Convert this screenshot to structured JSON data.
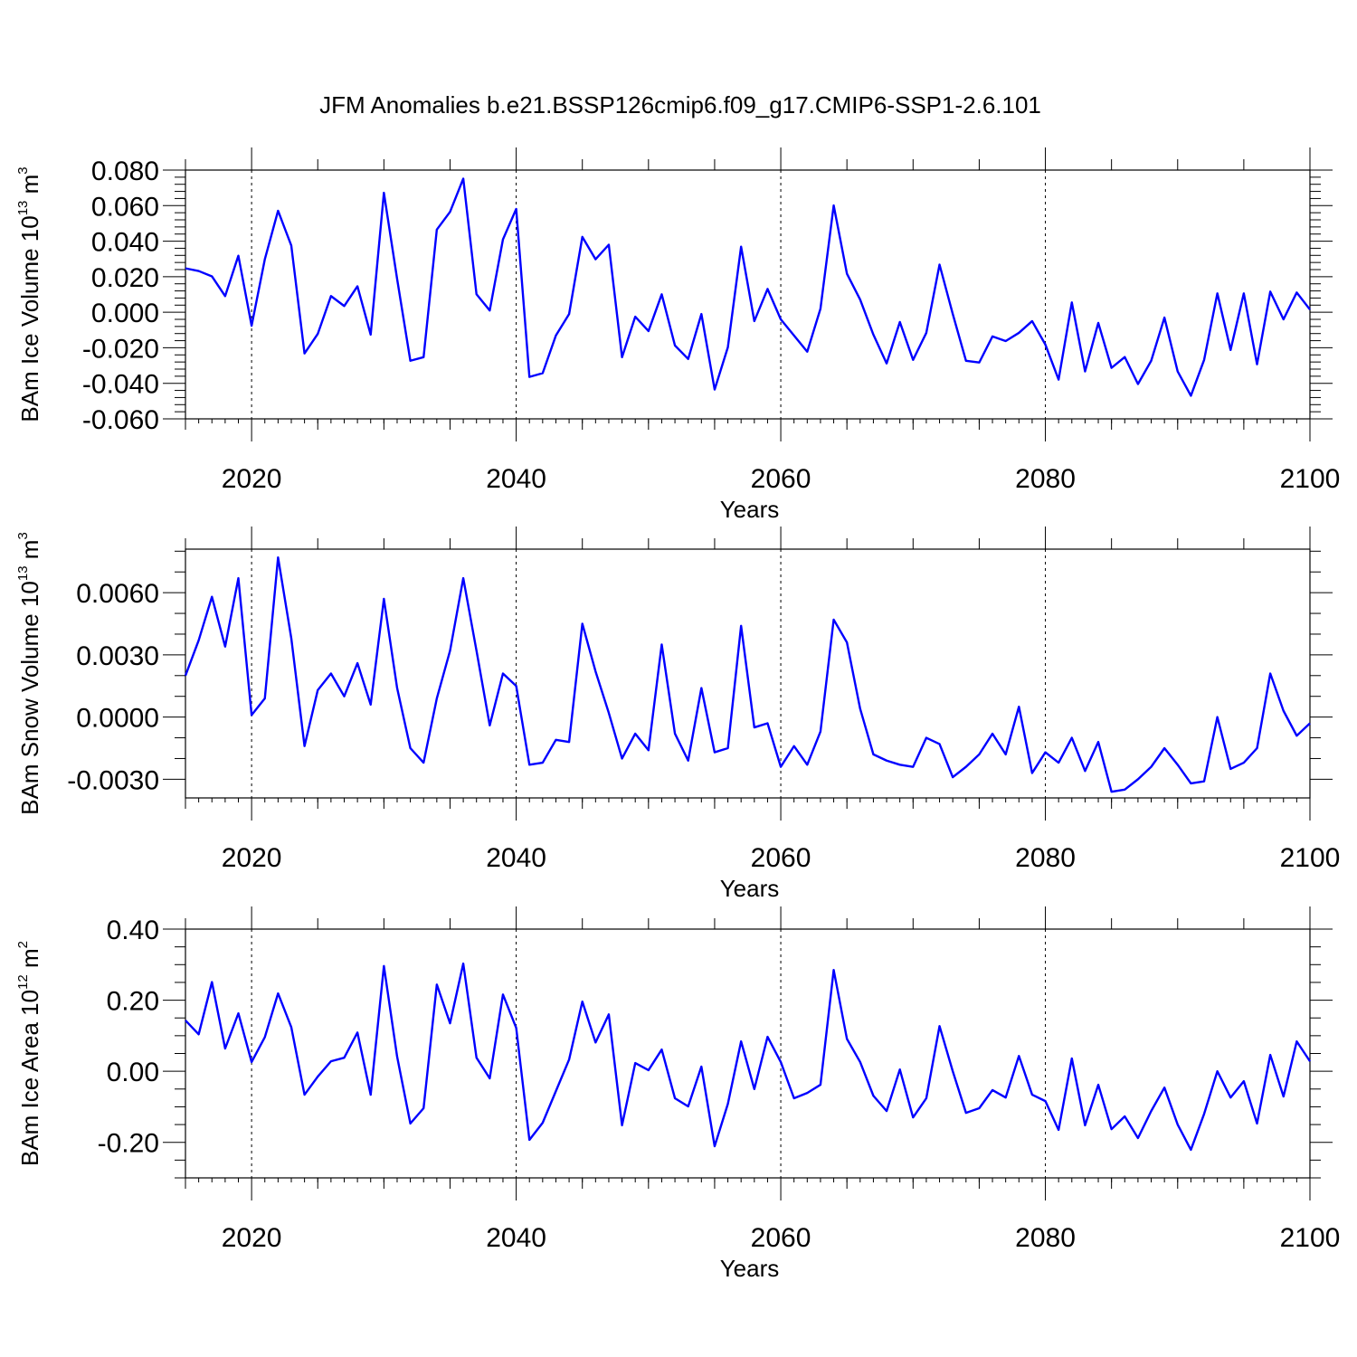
{
  "title": "JFM Anomalies b.e21.BSSP126cmip6.f09_g17.CMIP6-SSP1-2.6.101",
  "colors": {
    "line": "#0000ff",
    "axis": "#000000",
    "grid": "#000000"
  },
  "chart_data": [
    {
      "type": "line",
      "id": "ice-volume",
      "ylabel": {
        "main": "BAm Ice Volume 10",
        "exp": "13",
        "unit": " m",
        "unit_exp": "3"
      },
      "xlabel": "Years",
      "xlim": [
        2015,
        2100
      ],
      "ylim": [
        -0.06,
        0.08
      ],
      "xticks": [
        2020,
        2040,
        2060,
        2080,
        2100
      ],
      "xtick_labels": [
        "2020",
        "2040",
        "2060",
        "2080",
        "2100"
      ],
      "yticks": [
        0.08,
        0.06,
        0.04,
        0.02,
        0.0,
        -0.02,
        -0.04,
        -0.06
      ],
      "ytick_labels": [
        "0.080",
        "0.060",
        "0.040",
        "0.020",
        "0.000",
        "-0.020",
        "-0.040",
        "-0.060"
      ],
      "yminor": 0.004,
      "grid_x": [
        2020,
        2040,
        2060,
        2080
      ],
      "series": [
        {
          "name": "BAm Ice Volume",
          "x_start": 2015,
          "values": [
            0.0247,
            0.0232,
            0.0202,
            0.0091,
            0.0318,
            -0.0076,
            0.0298,
            0.0571,
            0.0375,
            -0.0232,
            -0.0122,
            0.0091,
            0.0035,
            0.0146,
            -0.0126,
            0.0672,
            0.0187,
            -0.0273,
            -0.0253,
            0.0465,
            0.0565,
            0.0752,
            0.0101,
            0.001,
            0.041,
            0.0581,
            -0.0364,
            -0.0343,
            -0.0131,
            -0.001,
            0.0424,
            0.0298,
            0.038,
            -0.0253,
            -0.0025,
            -0.0106,
            0.0101,
            -0.0187,
            -0.0263,
            -0.001,
            -0.0435,
            -0.0197,
            0.0369,
            -0.005,
            0.0131,
            -0.004,
            -0.0131,
            -0.0222,
            0.002,
            0.0601,
            0.0217,
            0.0071,
            -0.0126,
            -0.0288,
            -0.0055,
            -0.0268,
            -0.0116,
            0.0268,
            -0.001,
            -0.0273,
            -0.0283,
            -0.0136,
            -0.0162,
            -0.0116,
            -0.005,
            -0.0182,
            -0.0379,
            0.0055,
            -0.0333,
            -0.006,
            -0.0313,
            -0.0252,
            -0.0404,
            -0.0273,
            -0.003,
            -0.0333,
            -0.047,
            -0.0268,
            0.0106,
            -0.0212,
            0.0106,
            -0.0293,
            0.0116,
            -0.004,
            0.0111,
            0.0015
          ]
        }
      ]
    },
    {
      "type": "line",
      "id": "snow-volume",
      "ylabel": {
        "main": "BAm Snow Volume 10",
        "exp": "13",
        "unit": " m",
        "unit_exp": "3"
      },
      "xlabel": "Years",
      "xlim": [
        2015,
        2100
      ],
      "ylim": [
        -0.0039,
        0.0081
      ],
      "xticks": [
        2020,
        2040,
        2060,
        2080,
        2100
      ],
      "xtick_labels": [
        "2020",
        "2040",
        "2060",
        "2080",
        "2100"
      ],
      "yticks": [
        0.006,
        0.003,
        0.0,
        -0.003
      ],
      "ytick_labels": [
        "0.0060",
        "0.0030",
        "0.0000",
        "-0.0030"
      ],
      "yminor": 0.001,
      "grid_x": [
        2020,
        2040,
        2060,
        2080
      ],
      "series": [
        {
          "name": "BAm Snow Volume",
          "x_start": 2015,
          "values": [
            0.002,
            0.0037,
            0.0058,
            0.0034,
            0.0067,
            0.0001,
            0.0009,
            0.0077,
            0.0038,
            -0.0014,
            0.0013,
            0.0021,
            0.001,
            0.0026,
            0.0006,
            0.0057,
            0.0014,
            -0.0015,
            -0.0022,
            0.0009,
            0.0032,
            0.0067,
            0.0032,
            -0.0004,
            0.0021,
            0.0015,
            -0.0023,
            -0.0022,
            -0.0011,
            -0.0012,
            0.0045,
            0.0022,
            0.0002,
            -0.002,
            -0.0008,
            -0.0016,
            0.0035,
            -0.0008,
            -0.0021,
            0.0014,
            -0.0017,
            -0.0015,
            0.0044,
            -0.0005,
            -0.0003,
            -0.0024,
            -0.0014,
            -0.0023,
            -0.0007,
            0.0047,
            0.0036,
            0.0004,
            -0.0018,
            -0.0021,
            -0.0023,
            -0.0024,
            -0.001,
            -0.0013,
            -0.0029,
            -0.0024,
            -0.0018,
            -0.0008,
            -0.0018,
            0.0005,
            -0.0027,
            -0.0017,
            -0.0022,
            -0.001,
            -0.0026,
            -0.0012,
            -0.0036,
            -0.0035,
            -0.003,
            -0.0024,
            -0.0015,
            -0.0023,
            -0.0032,
            -0.0031,
            0.0,
            -0.0025,
            -0.0022,
            -0.0015,
            0.0021,
            0.0003,
            -0.0009,
            -0.0003
          ]
        }
      ]
    },
    {
      "type": "line",
      "id": "ice-area",
      "ylabel": {
        "main": "BAm Ice Area 10",
        "exp": "12",
        "unit": " m",
        "unit_exp": "2"
      },
      "xlabel": "Years",
      "xlim": [
        2015,
        2100
      ],
      "ylim": [
        -0.3,
        0.4
      ],
      "xticks": [
        2020,
        2040,
        2060,
        2080,
        2100
      ],
      "xtick_labels": [
        "2020",
        "2040",
        "2060",
        "2080",
        "2100"
      ],
      "yticks": [
        0.4,
        0.2,
        0.0,
        -0.2
      ],
      "ytick_labels": [
        "0.40",
        "0.20",
        "0.00",
        "-0.20"
      ],
      "yminor": 0.05,
      "grid_x": [
        2020,
        2040,
        2060,
        2080
      ],
      "series": [
        {
          "name": "BAm Ice Area",
          "x_start": 2015,
          "values": [
            0.143,
            0.104,
            0.251,
            0.064,
            0.163,
            0.026,
            0.096,
            0.219,
            0.124,
            -0.066,
            -0.015,
            0.028,
            0.038,
            0.109,
            -0.066,
            0.296,
            0.041,
            -0.147,
            -0.104,
            0.244,
            0.135,
            0.303,
            0.038,
            -0.02,
            0.216,
            0.122,
            -0.193,
            -0.145,
            -0.056,
            0.033,
            0.196,
            0.081,
            0.16,
            -0.152,
            0.023,
            0.003,
            0.061,
            -0.076,
            -0.099,
            0.013,
            -0.211,
            -0.092,
            0.084,
            -0.05,
            0.097,
            0.026,
            -0.076,
            -0.061,
            -0.038,
            0.285,
            0.091,
            0.026,
            -0.069,
            -0.112,
            0.005,
            -0.13,
            -0.076,
            0.127,
            0.0,
            -0.117,
            -0.104,
            -0.053,
            -0.074,
            0.043,
            -0.066,
            -0.084,
            -0.165,
            0.036,
            -0.152,
            -0.038,
            -0.163,
            -0.127,
            -0.188,
            -0.112,
            -0.046,
            -0.15,
            -0.221,
            -0.12,
            0.0,
            -0.074,
            -0.028,
            -0.147,
            0.046,
            -0.071,
            0.084,
            0.028
          ]
        }
      ]
    }
  ]
}
